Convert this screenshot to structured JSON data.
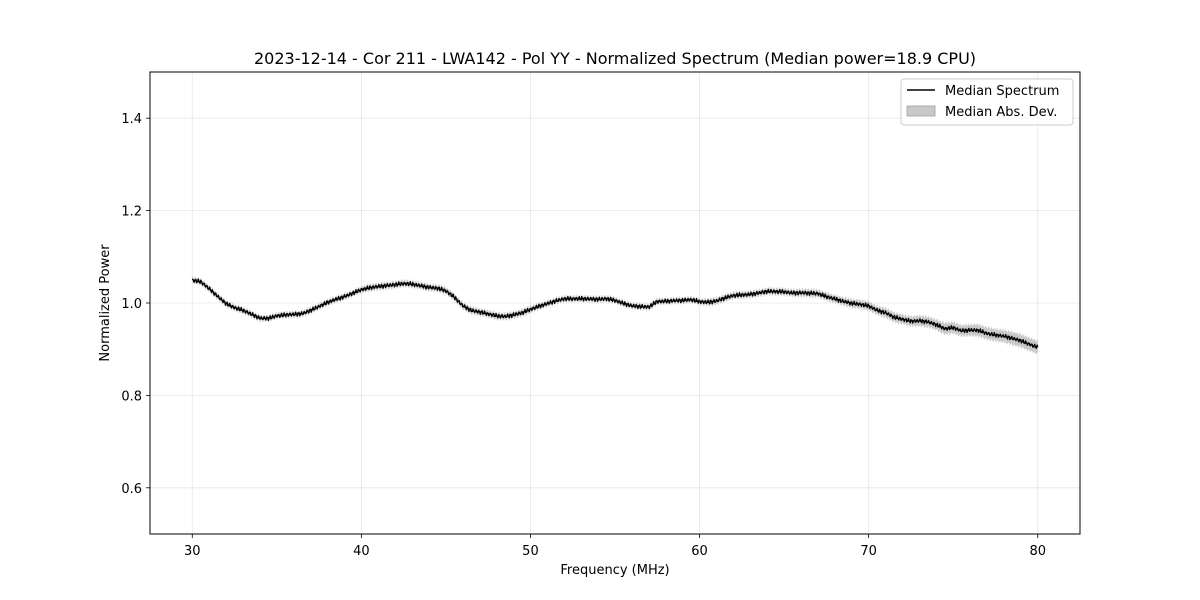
{
  "chart_data": {
    "type": "line",
    "title": "2023-12-14 - Cor 211 - LWA142 - Pol YY - Normalized Spectrum (Median power=18.9 CPU)",
    "xlabel": "Frequency (MHz)",
    "ylabel": "Normalized Power",
    "xlim": [
      27.5,
      82.5
    ],
    "ylim": [
      0.5,
      1.5
    ],
    "xticks": [
      30,
      40,
      50,
      60,
      70,
      80
    ],
    "yticks": [
      0.6,
      0.8,
      1.0,
      1.2,
      1.4
    ],
    "xtick_labels": [
      "30",
      "40",
      "50",
      "60",
      "70",
      "80"
    ],
    "ytick_labels": [
      "0.6",
      "0.8",
      "1.0",
      "1.2",
      "1.4"
    ],
    "grid": true,
    "legend_position": "top-right",
    "legend": [
      "Median Spectrum",
      "Median Abs. Dev."
    ],
    "series": [
      {
        "name": "Median Spectrum",
        "color": "#000000",
        "x": [
          30,
          30.5,
          31,
          31.5,
          32,
          32.5,
          33,
          33.5,
          34,
          34.5,
          35,
          35.5,
          36,
          36.5,
          37,
          37.5,
          38,
          38.5,
          39,
          39.5,
          40,
          40.5,
          41,
          41.5,
          42,
          42.5,
          43,
          43.5,
          44,
          44.5,
          45,
          45.5,
          46,
          46.5,
          47,
          47.5,
          48,
          48.5,
          49,
          49.5,
          50,
          50.5,
          51,
          51.5,
          52,
          52.5,
          53,
          53.5,
          54,
          54.5,
          55,
          55.5,
          56,
          56.5,
          57,
          57.5,
          58,
          58.5,
          59,
          59.5,
          60,
          60.5,
          61,
          61.5,
          62,
          62.5,
          63,
          63.5,
          64,
          64.5,
          65,
          65.5,
          66,
          66.5,
          67,
          67.5,
          68,
          68.5,
          69,
          69.5,
          70,
          70.5,
          71,
          71.5,
          72,
          72.5,
          73,
          73.5,
          74,
          74.5,
          75,
          75.5,
          76,
          76.5,
          77,
          77.5,
          78,
          78.5,
          79,
          79.5,
          80
        ],
        "values": [
          1.05,
          1.045,
          1.03,
          1.015,
          1.0,
          0.99,
          0.983,
          0.975,
          0.968,
          0.968,
          0.972,
          0.973,
          0.975,
          0.978,
          0.985,
          0.992,
          1.0,
          1.008,
          1.015,
          1.022,
          1.028,
          1.032,
          1.036,
          1.039,
          1.04,
          1.041,
          1.04,
          1.038,
          1.035,
          1.032,
          1.025,
          1.012,
          0.995,
          0.985,
          0.98,
          0.975,
          0.972,
          0.972,
          0.975,
          0.978,
          0.985,
          0.993,
          1.0,
          1.005,
          1.008,
          1.008,
          1.01,
          1.01,
          1.008,
          1.008,
          1.005,
          1.0,
          0.995,
          0.992,
          0.99,
          1.003,
          1.005,
          1.006,
          1.005,
          1.006,
          1.003,
          1.003,
          1.005,
          1.01,
          1.015,
          1.018,
          1.02,
          1.022,
          1.024,
          1.024,
          1.025,
          1.023,
          1.022,
          1.02,
          1.02,
          1.015,
          1.01,
          1.003,
          0.998,
          0.997,
          0.995,
          0.985,
          0.978,
          0.968,
          0.965,
          0.962,
          0.962,
          0.958,
          0.952,
          0.945,
          0.948,
          0.94,
          0.94,
          0.94,
          0.935,
          0.932,
          0.928,
          0.922,
          0.918,
          0.912,
          0.905
        ]
      },
      {
        "name": "Median Abs. Dev.",
        "color": "#bfbfbf",
        "band_halfwidth": [
          0.006,
          0.006,
          0.006,
          0.006,
          0.006,
          0.006,
          0.006,
          0.006,
          0.006,
          0.006,
          0.006,
          0.006,
          0.006,
          0.006,
          0.006,
          0.006,
          0.006,
          0.006,
          0.006,
          0.006,
          0.006,
          0.007,
          0.007,
          0.007,
          0.007,
          0.007,
          0.007,
          0.007,
          0.007,
          0.007,
          0.007,
          0.007,
          0.007,
          0.007,
          0.007,
          0.007,
          0.007,
          0.007,
          0.007,
          0.007,
          0.007,
          0.006,
          0.006,
          0.006,
          0.006,
          0.006,
          0.006,
          0.006,
          0.006,
          0.006,
          0.006,
          0.006,
          0.006,
          0.006,
          0.006,
          0.006,
          0.006,
          0.006,
          0.006,
          0.006,
          0.006,
          0.007,
          0.007,
          0.007,
          0.007,
          0.007,
          0.007,
          0.007,
          0.007,
          0.007,
          0.007,
          0.007,
          0.008,
          0.008,
          0.008,
          0.008,
          0.008,
          0.008,
          0.009,
          0.009,
          0.009,
          0.009,
          0.01,
          0.01,
          0.01,
          0.01,
          0.011,
          0.011,
          0.011,
          0.012,
          0.012,
          0.012,
          0.012,
          0.013,
          0.013,
          0.013,
          0.013,
          0.014,
          0.014,
          0.014,
          0.014
        ]
      }
    ]
  }
}
